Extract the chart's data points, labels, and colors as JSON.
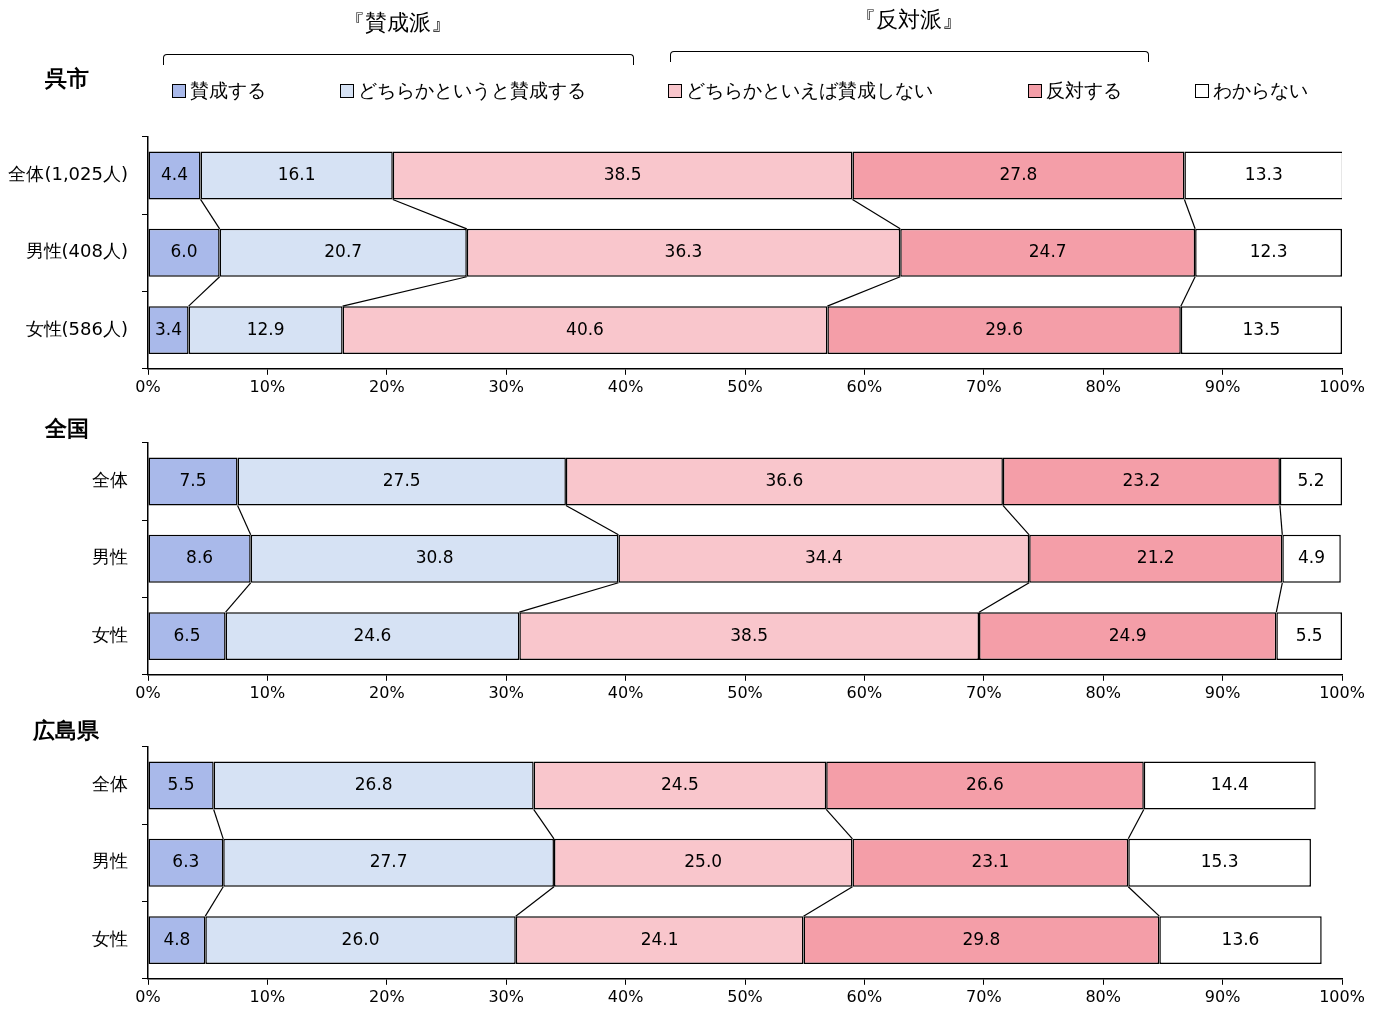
{
  "chart_data": [
    {
      "type": "bar",
      "orientation": "horizontal",
      "stacked": true,
      "title": "呉市",
      "annotations": [
        "『賛成派』",
        "『反対派』"
      ],
      "legend": "top",
      "grid": false,
      "categories": [
        "全体(1,025人)",
        "男性(408人)",
        "女性(586人)"
      ],
      "xlim": [
        0,
        100
      ],
      "xticks": [
        {
          "value": 0,
          "label": "0%"
        },
        {
          "value": 10,
          "label": "10%"
        },
        {
          "value": 20,
          "label": "20%"
        },
        {
          "value": 30,
          "label": "30%"
        },
        {
          "value": 40,
          "label": "40%"
        },
        {
          "value": 50,
          "label": "50%"
        },
        {
          "value": 60,
          "label": "60%"
        },
        {
          "value": 70,
          "label": "70%"
        },
        {
          "value": 80,
          "label": "80%"
        },
        {
          "value": 90,
          "label": "90%"
        },
        {
          "value": 100,
          "label": "100%"
        }
      ],
      "series": [
        {
          "name": "賛成する",
          "color": "#a9b9ea",
          "values": [
            4.4,
            6.0,
            3.4
          ],
          "value_labels": [
            "4.4",
            "6.0",
            "3.4"
          ]
        },
        {
          "name": "どちらかというと賛成する",
          "color": "#d6e2f4",
          "values": [
            16.1,
            20.7,
            12.9
          ],
          "value_labels": [
            "16.1",
            "20.7",
            "12.9"
          ]
        },
        {
          "name": "どちらかといえば賛成しない",
          "color": "#f9c6cc",
          "values": [
            38.5,
            36.3,
            40.6
          ],
          "value_labels": [
            "38.5",
            "36.3",
            "40.6"
          ]
        },
        {
          "name": "反対する",
          "color": "#f49ea8",
          "values": [
            27.8,
            24.7,
            29.6
          ],
          "value_labels": [
            "27.8",
            "24.7",
            "29.6"
          ]
        },
        {
          "name": "わからない",
          "color": "#ffffff",
          "values": [
            13.3,
            12.3,
            13.5
          ],
          "value_labels": [
            "13.3",
            "12.3",
            "13.5"
          ]
        }
      ]
    },
    {
      "type": "bar",
      "orientation": "horizontal",
      "stacked": true,
      "title": "全国",
      "grid": false,
      "categories": [
        "全体",
        "男性",
        "女性"
      ],
      "xlim": [
        0,
        100
      ],
      "xticks": [
        {
          "value": 0,
          "label": "0%"
        },
        {
          "value": 10,
          "label": "10%"
        },
        {
          "value": 20,
          "label": "20%"
        },
        {
          "value": 30,
          "label": "30%"
        },
        {
          "value": 40,
          "label": "40%"
        },
        {
          "value": 50,
          "label": "50%"
        },
        {
          "value": 60,
          "label": "60%"
        },
        {
          "value": 70,
          "label": "70%"
        },
        {
          "value": 80,
          "label": "80%"
        },
        {
          "value": 90,
          "label": "90%"
        },
        {
          "value": 100,
          "label": "100%"
        }
      ],
      "series": [
        {
          "color": "#a9b9ea",
          "values": [
            7.5,
            8.6,
            6.5
          ],
          "value_labels": [
            "7.5",
            "8.6",
            "6.5"
          ]
        },
        {
          "color": "#d6e2f4",
          "values": [
            27.5,
            30.8,
            24.6
          ],
          "value_labels": [
            "27.5",
            "30.8",
            "24.6"
          ]
        },
        {
          "color": "#f9c6cc",
          "values": [
            36.6,
            34.4,
            38.5
          ],
          "value_labels": [
            "36.6",
            "34.4",
            "38.5"
          ]
        },
        {
          "color": "#f49ea8",
          "values": [
            23.2,
            21.2,
            24.9
          ],
          "value_labels": [
            "23.2",
            "21.2",
            "24.9"
          ]
        },
        {
          "color": "#ffffff",
          "values": [
            5.2,
            4.9,
            5.5
          ],
          "value_labels": [
            "5.2",
            "4.9",
            "5.5"
          ]
        }
      ]
    },
    {
      "type": "bar",
      "orientation": "horizontal",
      "stacked": true,
      "title": "広島県",
      "grid": false,
      "categories": [
        "全体",
        "男性",
        "女性"
      ],
      "xlim": [
        0,
        100
      ],
      "xticks": [
        {
          "value": 0,
          "label": "0%"
        },
        {
          "value": 10,
          "label": "10%"
        },
        {
          "value": 20,
          "label": "20%"
        },
        {
          "value": 30,
          "label": "30%"
        },
        {
          "value": 40,
          "label": "40%"
        },
        {
          "value": 50,
          "label": "50%"
        },
        {
          "value": 60,
          "label": "60%"
        },
        {
          "value": 70,
          "label": "70%"
        },
        {
          "value": 80,
          "label": "80%"
        },
        {
          "value": 90,
          "label": "90%"
        },
        {
          "value": 100,
          "label": "100%"
        }
      ],
      "series": [
        {
          "color": "#a9b9ea",
          "values": [
            5.5,
            6.3,
            4.8
          ],
          "value_labels": [
            "5.5",
            "6.3",
            "4.8"
          ]
        },
        {
          "color": "#d6e2f4",
          "values": [
            26.8,
            27.7,
            26.0
          ],
          "value_labels": [
            "26.8",
            "27.7",
            "26.0"
          ]
        },
        {
          "color": "#f9c6cc",
          "values": [
            24.5,
            25.0,
            24.1
          ],
          "value_labels": [
            "24.5",
            "25.0",
            "24.1"
          ]
        },
        {
          "color": "#f49ea8",
          "values": [
            26.6,
            23.1,
            29.8
          ],
          "value_labels": [
            "26.6",
            "23.1",
            "29.8"
          ]
        },
        {
          "color": "#ffffff",
          "values": [
            14.4,
            15.3,
            13.6
          ],
          "value_labels": [
            "14.4",
            "15.3",
            "13.6"
          ]
        }
      ]
    }
  ]
}
